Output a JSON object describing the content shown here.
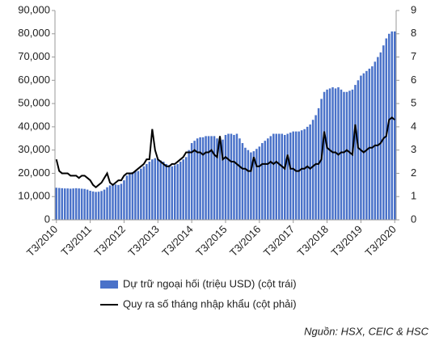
{
  "chart_data": {
    "type": "bar-line",
    "categories": [
      "T3/2010",
      null,
      null,
      null,
      null,
      null,
      null,
      null,
      null,
      null,
      null,
      null,
      "T3/2011",
      null,
      null,
      null,
      null,
      null,
      null,
      null,
      null,
      null,
      null,
      null,
      "T3/2012",
      null,
      null,
      null,
      null,
      null,
      null,
      null,
      null,
      null,
      null,
      null,
      "T3/2013",
      null,
      null,
      null,
      null,
      null,
      null,
      null,
      null,
      null,
      null,
      null,
      "T3/2014",
      null,
      null,
      null,
      null,
      null,
      null,
      null,
      null,
      null,
      null,
      null,
      "T3/2015",
      null,
      null,
      null,
      null,
      null,
      null,
      null,
      null,
      null,
      null,
      null,
      "T3/2016",
      null,
      null,
      null,
      null,
      null,
      null,
      null,
      null,
      null,
      null,
      null,
      "T3/2017",
      null,
      null,
      null,
      null,
      null,
      null,
      null,
      null,
      null,
      null,
      null,
      "T3/2018",
      null,
      null,
      null,
      null,
      null,
      null,
      null,
      null,
      null,
      null,
      null,
      "T3/2019",
      null,
      null,
      null,
      null,
      null,
      null,
      null,
      null,
      null,
      null,
      null,
      "T3/2020"
    ],
    "series": [
      {
        "name": "Dự trữ ngoại hối (triệu USD) (cột trái)",
        "type": "bar",
        "color": "#4a72c9",
        "values": [
          13800,
          13700,
          13600,
          13500,
          13500,
          13400,
          13500,
          13600,
          13500,
          13400,
          13300,
          13000,
          12500,
          12200,
          12000,
          12100,
          12400,
          13000,
          14000,
          14800,
          15000,
          15200,
          15000,
          15500,
          17000,
          19000,
          20000,
          20500,
          21000,
          21000,
          22000,
          23000,
          24000,
          25000,
          26000,
          26500,
          26000,
          25500,
          25000,
          24000,
          23500,
          23000,
          23500,
          24000,
          25000,
          26000,
          27000,
          30000,
          33000,
          34000,
          35000,
          35500,
          35500,
          36000,
          36000,
          36000,
          36000,
          35000,
          35000,
          34500,
          36500,
          37000,
          37000,
          36500,
          37000,
          35000,
          33000,
          31000,
          30000,
          29000,
          29500,
          30500,
          31500,
          33000,
          34000,
          35000,
          36000,
          37000,
          37000,
          37000,
          37000,
          36500,
          37000,
          37500,
          38000,
          38000,
          38000,
          38500,
          39000,
          40000,
          41000,
          43000,
          45000,
          48000,
          52000,
          55000,
          56000,
          56500,
          57000,
          56500,
          57000,
          56000,
          55000,
          55000,
          55500,
          56000,
          58000,
          60000,
          62000,
          63000,
          64000,
          65000,
          66000,
          68000,
          70000,
          72000,
          75000,
          78000,
          80000,
          81000,
          81000
        ]
      },
      {
        "name": "Quy ra số tháng nhập khẩu (cột phải)",
        "type": "line",
        "color": "#000000",
        "axis": "y2",
        "values": [
          2.6,
          2.1,
          2.0,
          2.0,
          2.0,
          1.9,
          1.9,
          1.9,
          1.8,
          1.9,
          1.9,
          1.8,
          1.7,
          1.5,
          1.4,
          1.5,
          1.6,
          1.8,
          2.0,
          1.6,
          1.5,
          1.6,
          1.7,
          1.7,
          1.9,
          2.0,
          2.0,
          2.0,
          2.1,
          2.2,
          2.3,
          2.4,
          2.6,
          2.6,
          3.9,
          3.0,
          2.6,
          2.5,
          2.4,
          2.3,
          2.3,
          2.4,
          2.4,
          2.5,
          2.6,
          2.7,
          2.9,
          2.9,
          2.9,
          3.0,
          2.9,
          2.9,
          2.8,
          2.9,
          2.9,
          3.0,
          2.8,
          2.7,
          3.6,
          2.6,
          2.7,
          2.6,
          2.5,
          2.5,
          2.4,
          2.3,
          2.2,
          2.2,
          2.1,
          2.1,
          2.7,
          2.3,
          2.3,
          2.4,
          2.4,
          2.4,
          2.5,
          2.4,
          2.5,
          2.4,
          2.3,
          2.2,
          2.8,
          2.2,
          2.2,
          2.1,
          2.1,
          2.2,
          2.2,
          2.3,
          2.2,
          2.3,
          2.4,
          2.4,
          2.6,
          3.8,
          3.1,
          3.0,
          2.9,
          2.9,
          2.8,
          2.9,
          2.9,
          3.0,
          2.9,
          2.8,
          4.1,
          3.1,
          3.0,
          2.9,
          3.0,
          3.1,
          3.1,
          3.2,
          3.2,
          3.3,
          3.5,
          3.6,
          4.3,
          4.4,
          4.3
        ]
      }
    ],
    "ylim": [
      0,
      90000
    ],
    "yticks": [
      0,
      {
        "value": 10000,
        "label": "10,000"
      },
      {
        "value": 20000,
        "label": "20,000"
      },
      {
        "value": 30000,
        "label": "30,000"
      },
      {
        "value": 40000,
        "label": "40,000"
      },
      {
        "value": 50000,
        "label": "50,000"
      },
      {
        "value": 60000,
        "label": "60,000"
      },
      {
        "value": 70000,
        "label": "70,000"
      },
      {
        "value": 80000,
        "label": "80,000"
      },
      {
        "value": 90000,
        "label": "90,000"
      }
    ],
    "y2lim": [
      0,
      9
    ],
    "y2ticks": [
      0,
      1,
      2,
      3,
      4,
      5,
      6,
      7,
      8,
      9
    ],
    "source": "Nguồn: HSX, CEIC & HSC"
  }
}
